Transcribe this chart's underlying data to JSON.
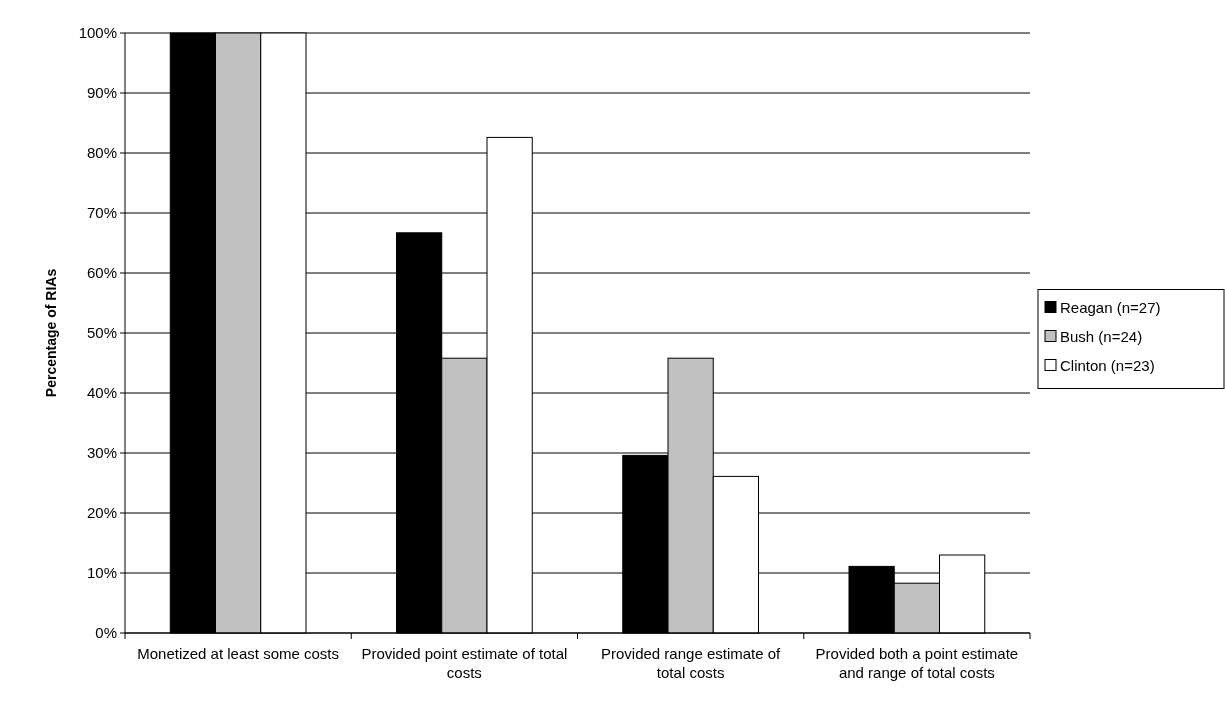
{
  "chart_data": {
    "type": "bar",
    "ylabel": "Percentage of RIAs",
    "categories": [
      "Monetized at least some costs",
      "Provided point estimate of total costs",
      "Provided range estimate of total costs",
      "Provided both a point estimate and range of total costs"
    ],
    "series": [
      {
        "name": "Reagan (n=27)",
        "color": "#000000",
        "values": [
          100,
          66.7,
          29.6,
          11.1
        ]
      },
      {
        "name": "Bush (n=24)",
        "color": "#c0c0c0",
        "values": [
          100,
          45.8,
          45.8,
          8.3
        ]
      },
      {
        "name": "Clinton (n=23)",
        "color": "#ffffff",
        "values": [
          100,
          82.6,
          26.1,
          13.0
        ]
      }
    ],
    "ylim": [
      0,
      100
    ],
    "yticks": [
      {
        "value": 0,
        "label": "0%"
      },
      {
        "value": 10,
        "label": "10%"
      },
      {
        "value": 20,
        "label": "20%"
      },
      {
        "value": 30,
        "label": "30%"
      },
      {
        "value": 40,
        "label": "40%"
      },
      {
        "value": 50,
        "label": "50%"
      },
      {
        "value": 60,
        "label": "60%"
      },
      {
        "value": 70,
        "label": "70%"
      },
      {
        "value": 80,
        "label": "80%"
      },
      {
        "value": 90,
        "label": "90%"
      },
      {
        "value": 100,
        "label": "100%"
      }
    ],
    "grid": "y",
    "legend": "right"
  }
}
